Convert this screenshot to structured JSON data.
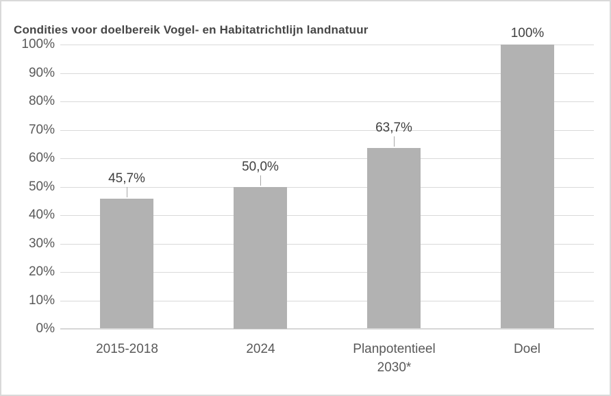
{
  "window": {
    "background_color": "#ffffff",
    "border_color": "#d9d9d9"
  },
  "chart_data": {
    "type": "bar",
    "title": "Condities voor doelbereik Vogel- en Habitatrichtlijn landnatuur",
    "categories": [
      "2015-2018",
      "2024",
      "Planpotentieel 2030*",
      "Doel"
    ],
    "category_lines": [
      [
        "2015-2018"
      ],
      [
        "2024"
      ],
      [
        "Planpotentieel",
        "2030*"
      ],
      [
        "Doel"
      ]
    ],
    "values": [
      45.7,
      50.0,
      63.7,
      100
    ],
    "data_labels": [
      "45,7%",
      "50,0%",
      "63,7%",
      "100%"
    ],
    "leader_lines": [
      true,
      true,
      true,
      false
    ],
    "xlabel": "",
    "ylabel": "",
    "ylim": [
      0,
      100
    ],
    "y_tick_values": [
      0,
      10,
      20,
      30,
      40,
      50,
      60,
      70,
      80,
      90,
      100
    ],
    "y_tick_labels": [
      "0%",
      "10%",
      "20%",
      "30%",
      "40%",
      "50%",
      "60%",
      "70%",
      "80%",
      "90%",
      "100%"
    ],
    "grid": true,
    "legend": "none",
    "bar_color": "#b2b2b2",
    "gridline_color": "#d9d9d9",
    "axis_line_color": "#d6d6d6",
    "axis_text_color": "#595959",
    "data_label_color": "#404040",
    "leader_line_color": "#a6a6a6",
    "title_color": "#464646"
  }
}
